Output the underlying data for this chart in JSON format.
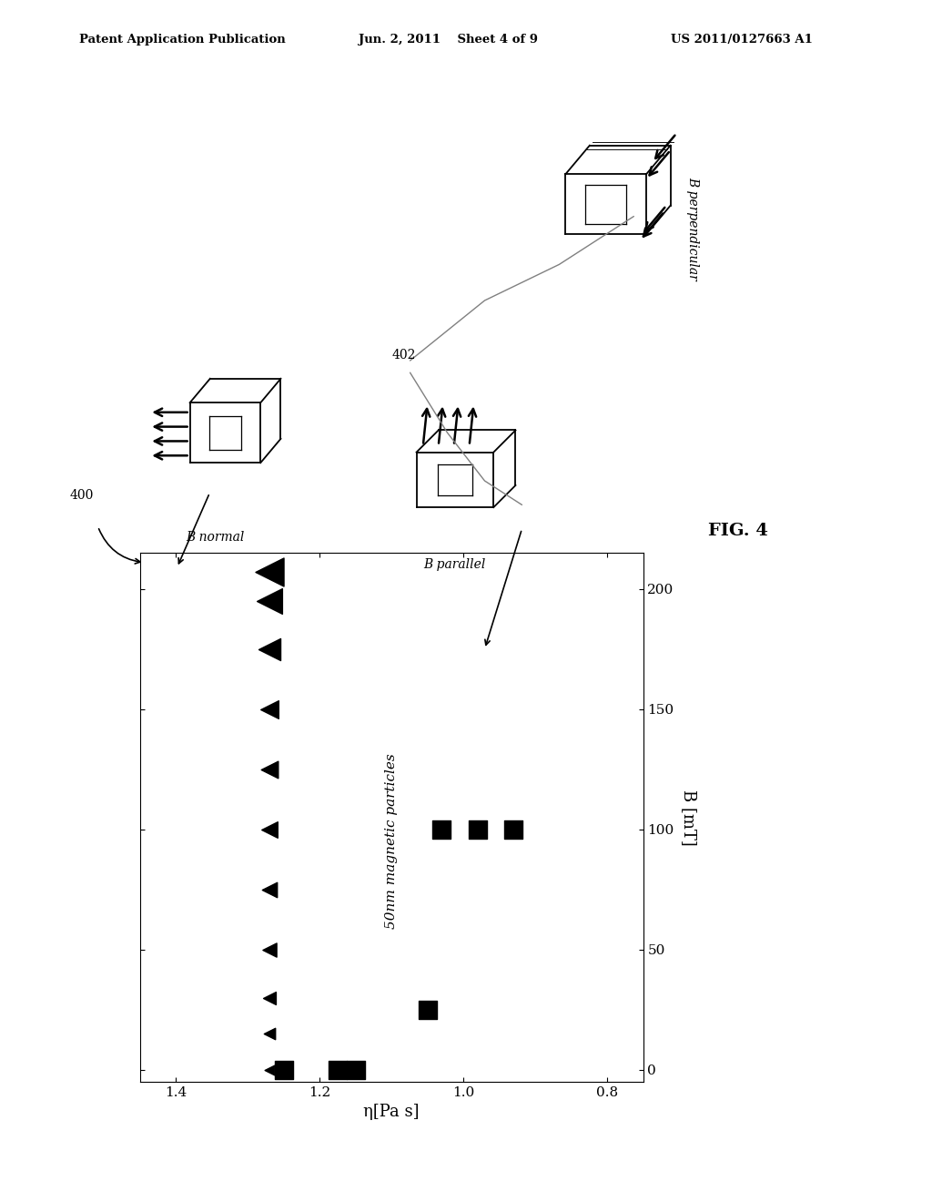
{
  "header_left": "Patent Application Publication",
  "header_center": "Jun. 2, 2011    Sheet 4 of 9",
  "header_right": "US 2011/0127663 A1",
  "fig_label": "FIG. 4",
  "xlabel": "η[Pa s]",
  "ylabel": "B [mT]",
  "xlim": [
    1.45,
    0.75
  ],
  "ylim": [
    -5,
    215
  ],
  "xticks": [
    1.4,
    1.2,
    1.0,
    0.8
  ],
  "yticks": [
    0,
    50,
    100,
    150,
    200
  ],
  "annotation_text": "50nm magnetic particles",
  "ref_400": "400",
  "ref_402": "402",
  "bg_color": "#ffffff",
  "marker_color": "#000000",
  "text_color": "#000000",
  "b_perpendicular_label": "B perpendicular",
  "b_parallel_label": "B parallel",
  "b_normal_label": "B normal",
  "squares_data": [
    [
      1.25,
      0
    ],
    [
      1.175,
      0
    ],
    [
      1.15,
      0
    ],
    [
      1.05,
      25
    ],
    [
      1.03,
      100
    ],
    [
      0.98,
      100
    ],
    [
      0.93,
      100
    ]
  ],
  "triangles_data": [
    [
      1.27,
      207,
      500
    ],
    [
      1.27,
      195,
      400
    ],
    [
      1.27,
      175,
      300
    ],
    [
      1.27,
      150,
      200
    ],
    [
      1.27,
      125,
      180
    ],
    [
      1.27,
      100,
      160
    ],
    [
      1.27,
      75,
      140
    ],
    [
      1.27,
      50,
      120
    ],
    [
      1.27,
      30,
      100
    ],
    [
      1.27,
      15,
      80
    ],
    [
      1.27,
      0,
      60
    ]
  ]
}
